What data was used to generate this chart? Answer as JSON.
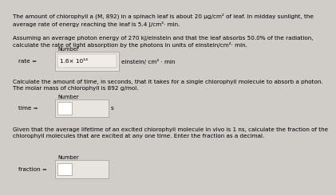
{
  "bg_color": "#d0ccc8",
  "text_color": "#000000",
  "box_color": "#e8e4e0",
  "box_border": "#a09890",
  "para1": "The amount of chlorophyll a (M, 892) in a spinach leaf is about 20 μg/cm² of leaf. In midday sunlight, the\naverage rate of energy reaching the leaf is 5.4 J/cm²· min.",
  "para2": "Assuming an average photon energy of 270 kJ/einstein and that the leaf absorbs 50.0% of the radiation,\ncalculate the rate of light absorption by the photons in units of einstein/cm²· min.",
  "label_number": "Number",
  "rate_label": "rate =",
  "rate_value": "1.6× 10¹⁴",
  "rate_unit": "einstein/ cm² · min",
  "para3": "Calculate the amount of time, in seconds, that it takes for a single chlorophyll molecule to absorb a photon.\nThe molar mass of chlorophyll is 892 g/mol.",
  "time_label": "time =",
  "time_unit": "s",
  "para4": "Given that the average lifetime of an excited chlorophyll molecule in vivo is 1 ns, calculate the fraction of the\nchlorophyll molecules that are excited at any one time. Enter the fraction as a decimal.",
  "fraction_label": "fraction ="
}
